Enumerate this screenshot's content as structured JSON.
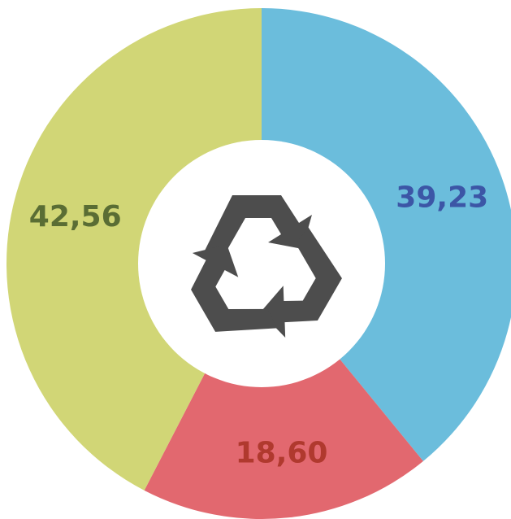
{
  "chart_data": {
    "type": "donut",
    "categories": [
      null,
      null,
      null
    ],
    "values": [
      39.23,
      18.6,
      42.56
    ],
    "value_labels": [
      "39,23",
      "18,60",
      "42,56"
    ],
    "colors": [
      "#6bbddc",
      "#e2686f",
      "#d1d676"
    ],
    "label_colors": [
      "#3c56a6",
      "#b0392e",
      "#5a6d34"
    ]
  }
}
